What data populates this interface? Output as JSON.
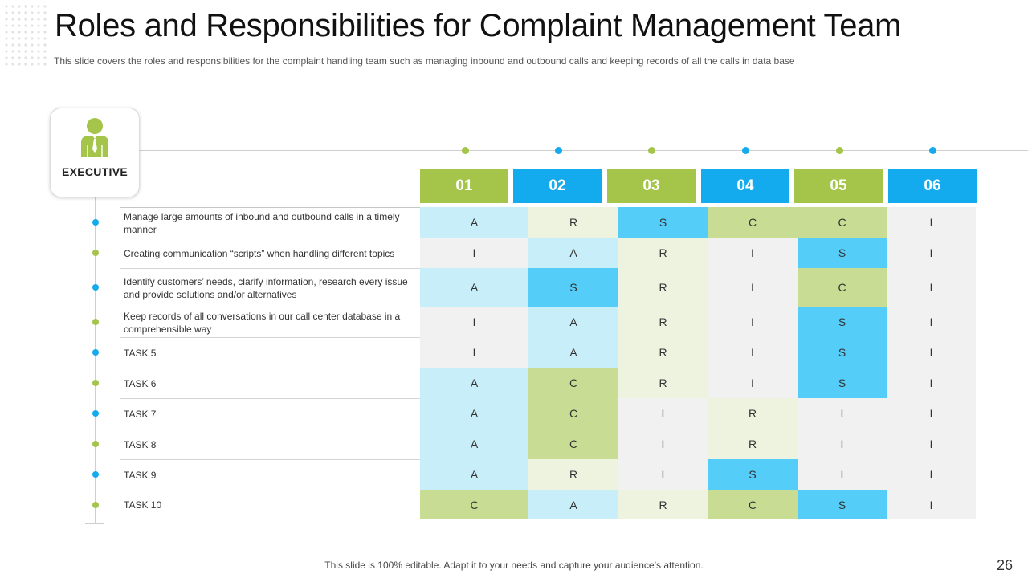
{
  "header": {
    "title": "Roles and Responsibilities for Complaint Management Team",
    "subtitle": "This slide covers the roles and responsibilities for the complaint handling team such as managing inbound and outbound calls and  keeping records of all the calls in data base"
  },
  "executive": {
    "label": "EXECUTIVE",
    "icon": "executive-person-icon"
  },
  "columns": [
    "01",
    "02",
    "03",
    "04",
    "05",
    "06"
  ],
  "tasks": [
    {
      "label": "Manage large amounts of inbound and outbound calls in a timely manner",
      "cells": [
        "A",
        "R",
        "S",
        "C",
        "C",
        "I"
      ]
    },
    {
      "label": "Creating  communication “scripts” when handling different topics",
      "cells": [
        "I",
        "A",
        "R",
        "I",
        "S",
        "I"
      ]
    },
    {
      "label": "Identify customers’ needs, clarify information, research every issue and provide solutions and/or alternatives",
      "cells": [
        "A",
        "S",
        "R",
        "I",
        "C",
        "I"
      ]
    },
    {
      "label": "Keep records of all conversations in our call center database in a comprehensible way",
      "cells": [
        "I",
        "A",
        "R",
        "I",
        "S",
        "I"
      ]
    },
    {
      "label": "TASK 5",
      "cells": [
        "I",
        "A",
        "R",
        "I",
        "S",
        "I"
      ]
    },
    {
      "label": "TASK 6",
      "cells": [
        "A",
        "C",
        "R",
        "I",
        "S",
        "I"
      ]
    },
    {
      "label": "TASK 7",
      "cells": [
        "A",
        "C",
        "I",
        "R",
        "I",
        "I"
      ]
    },
    {
      "label": "TASK 8",
      "cells": [
        "A",
        "C",
        "I",
        "R",
        "I",
        "I"
      ]
    },
    {
      "label": "TASK 9",
      "cells": [
        "A",
        "R",
        "I",
        "S",
        "I",
        "I"
      ]
    },
    {
      "label": "TASK 10",
      "cells": [
        "C",
        "A",
        "R",
        "C",
        "S",
        "I"
      ]
    }
  ],
  "colors": {
    "green": "#a4c44a",
    "blue": "#14aaee",
    "cell_A": "#c8eefa",
    "cell_R": "#edf3df",
    "cell_S": "#54cdf8",
    "cell_C": "#c8dc94",
    "cell_I": "#f1f1f1"
  },
  "footer": {
    "note": "This slide is 100% editable. Adapt it to your needs and capture your audience’s attention.",
    "page_number": "26"
  }
}
